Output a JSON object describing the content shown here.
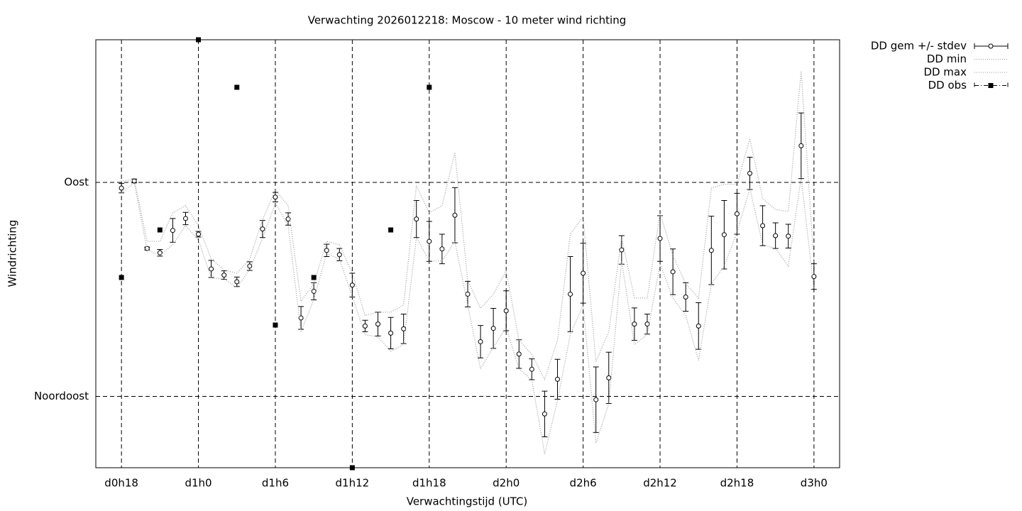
{
  "chart_data": {
    "type": "errorbar",
    "title": "Verwachting 2026012218: Moscow - 10 meter wind richting",
    "x_label": "Verwachtingstijd (UTC)",
    "y_label": "Windrichting",
    "x": [
      18,
      19,
      20,
      21,
      22,
      23,
      24,
      25,
      26,
      27,
      28,
      29,
      30,
      31,
      32,
      33,
      34,
      35,
      36,
      37,
      38,
      39,
      40,
      41,
      42,
      43,
      44,
      45,
      46,
      47,
      48,
      49,
      50,
      51,
      52,
      53,
      54,
      55,
      56,
      57,
      58,
      59,
      60,
      61,
      62,
      63,
      64,
      65,
      66,
      67,
      68,
      69,
      70,
      71,
      72
    ],
    "xlim": [
      16,
      74
    ],
    "xticks": [
      {
        "value": 18,
        "label": "d0h18"
      },
      {
        "value": 24,
        "label": "d1h0"
      },
      {
        "value": 30,
        "label": "d1h6"
      },
      {
        "value": 36,
        "label": "d1h12"
      },
      {
        "value": 42,
        "label": "d1h18"
      },
      {
        "value": 48,
        "label": "d2h0"
      },
      {
        "value": 54,
        "label": "d2h6"
      },
      {
        "value": 60,
        "label": "d2h12"
      },
      {
        "value": 66,
        "label": "d2h18"
      },
      {
        "value": 72,
        "label": "d3h0"
      }
    ],
    "ylim": [
      30,
      120
    ],
    "yticks": [
      {
        "value": 45,
        "label": "Noordoost"
      },
      {
        "value": 90,
        "label": "Oost"
      }
    ],
    "grid": true,
    "legend": "outside-top-right",
    "series": [
      {
        "name": "DD gem +/- stdev",
        "color": "#000000",
        "values": [
          88.8,
          90.3,
          76.1,
          75.2,
          79.9,
          82.4,
          79.1,
          71.8,
          70.5,
          69.1,
          72.4,
          80.2,
          86.9,
          82.3,
          61.5,
          67.1,
          75.7,
          74.8,
          68.4,
          59.8,
          60.2,
          58.3,
          59.2,
          82.3,
          77.6,
          76.0,
          83.1,
          66.5,
          56.5,
          59.3,
          63.0,
          53.9,
          50.7,
          41.3,
          48.6,
          66.5,
          70.9,
          44.3,
          48.9,
          75.8,
          60.2,
          60.2,
          78.2,
          71.2,
          65.9,
          59.8,
          75.7,
          79.0,
          83.4,
          91.9,
          80.9,
          78.8,
          78.7,
          97.7,
          70.2
        ],
        "stdev": [
          1.0,
          0.4,
          0.3,
          0.7,
          2.5,
          1.3,
          0.6,
          1.8,
          0.9,
          1.0,
          0.9,
          1.8,
          1.0,
          1.3,
          2.4,
          1.8,
          1.3,
          1.3,
          2.5,
          1.2,
          2.5,
          3.3,
          3.1,
          3.9,
          4.2,
          3.1,
          5.8,
          2.7,
          3.4,
          4.2,
          4.2,
          3.0,
          2.2,
          4.8,
          4.2,
          7.9,
          6.3,
          6.9,
          5.4,
          3.0,
          3.4,
          2.1,
          4.8,
          4.8,
          3.0,
          4.9,
          7.2,
          7.2,
          4.3,
          3.4,
          4.2,
          2.7,
          2.5,
          6.9,
          2.7
        ]
      },
      {
        "name": "DD min",
        "color": "#999999",
        "values": [
          87.8,
          89.9,
          75.8,
          74.7,
          76.9,
          80.9,
          77.9,
          69.9,
          69.7,
          67.9,
          71.7,
          78.2,
          85.7,
          80.9,
          58.6,
          65.4,
          75.0,
          73.9,
          66.0,
          58.0,
          57.5,
          54.5,
          55.9,
          78.4,
          73.5,
          73.5,
          77.6,
          64.2,
          50.8,
          55.3,
          59.5,
          50.8,
          48.4,
          32.9,
          44.1,
          58.0,
          64.2,
          35.2,
          43.4,
          73.5,
          55.9,
          58.0,
          72.9,
          65.7,
          62.0,
          52.6,
          68.7,
          72.4,
          79.4,
          88.8,
          76.9,
          76.1,
          72.4,
          91.0,
          67.5
        ]
      },
      {
        "name": "DD max",
        "color": "#999999",
        "values": [
          90.3,
          90.6,
          77.6,
          77.6,
          83.6,
          85.1,
          80.9,
          73.9,
          71.6,
          70.9,
          73.9,
          82.1,
          88.4,
          85.1,
          65.0,
          68.7,
          77.6,
          76.9,
          70.9,
          62.0,
          62.7,
          62.7,
          64.2,
          89.3,
          83.6,
          85.1,
          96.3,
          69.4,
          63.5,
          66.5,
          71.4,
          56.8,
          53.8,
          48.6,
          56.8,
          79.1,
          82.8,
          52.3,
          58.6,
          78.4,
          65.7,
          65.7,
          83.6,
          74.6,
          68.7,
          65.7,
          88.8,
          89.6,
          89.6,
          99.2,
          86.6,
          84.3,
          83.9,
          113.4,
          73.2
        ]
      },
      {
        "name": "DD obs",
        "color": "#000000",
        "x": [
          18,
          21,
          24,
          27,
          30,
          33,
          36,
          39,
          42
        ],
        "values": [
          70,
          80,
          120,
          110,
          60,
          70,
          30,
          80,
          110
        ]
      }
    ]
  }
}
